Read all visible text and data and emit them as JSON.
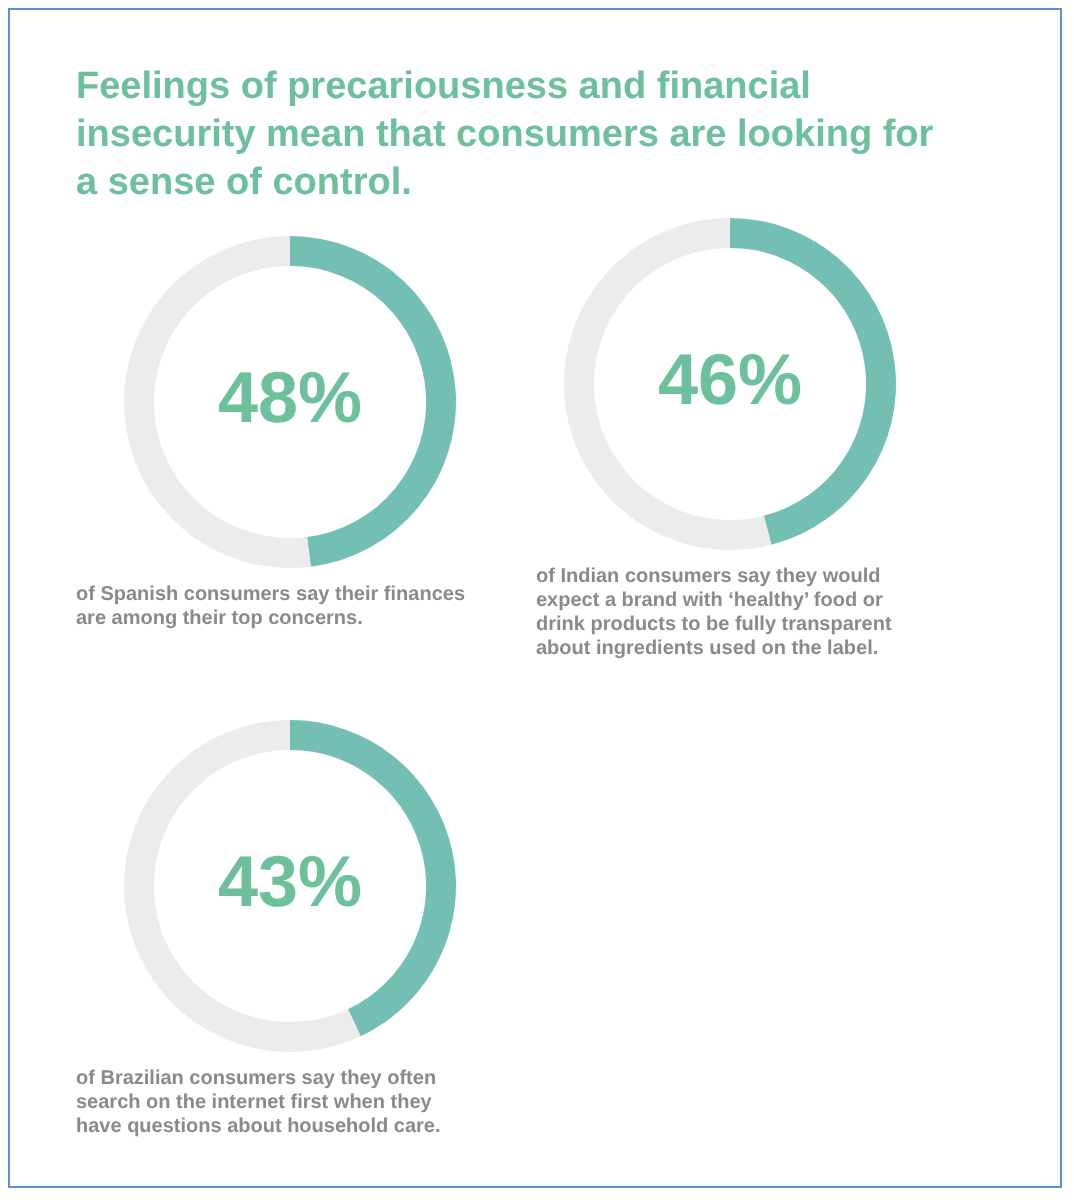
{
  "chart_data": [
    {
      "type": "donut",
      "title": "Feelings of precariousness and financial insecurity mean that consumers are looking for a sense of control.",
      "categories": [
        null,
        null
      ],
      "values": [
        48,
        52
      ],
      "colors": [
        "#74bfb4",
        "#ececec"
      ],
      "value_labels": [
        "48%",
        null
      ],
      "annotations": [
        "of Spanish consumers say their finances are among their top concerns."
      ]
    },
    {
      "type": "donut",
      "categories": [
        null,
        null
      ],
      "values": [
        46,
        54
      ],
      "colors": [
        "#74bfb4",
        "#ececec"
      ],
      "value_labels": [
        "46%",
        null
      ],
      "annotations": [
        "of Indian consumers say they would expect a brand with ‘healthy’ food or drink products to be fully transparent about ingredients used on the label."
      ]
    },
    {
      "type": "donut",
      "categories": [
        null,
        null
      ],
      "values": [
        43,
        57
      ],
      "colors": [
        "#74bfb4",
        "#ececec"
      ],
      "value_labels": [
        "43%",
        null
      ],
      "annotations": [
        "of Brazilian consumers say they often search on the internet first when they have questions about household care."
      ]
    }
  ]
}
